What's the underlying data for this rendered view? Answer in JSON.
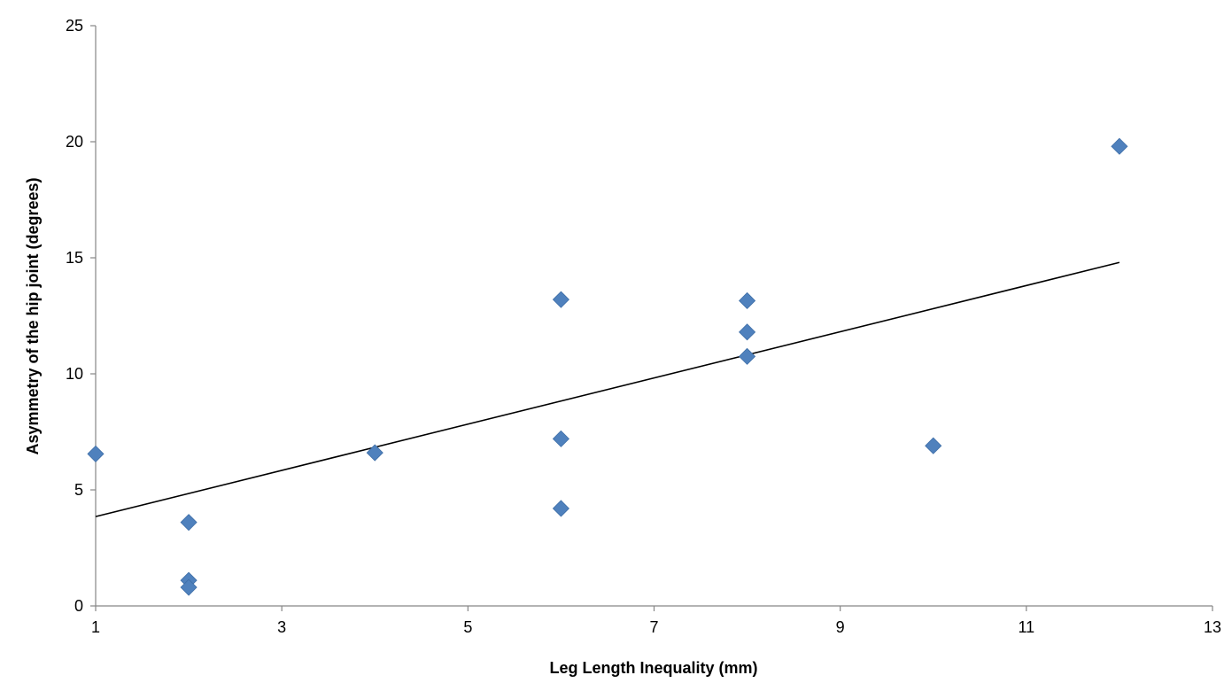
{
  "chart_data": {
    "type": "scatter",
    "title": "",
    "xlabel": "Leg Length Inequality (mm)",
    "ylabel": "Asymmetry of the hip joint (degrees)",
    "xlim": [
      1,
      13
    ],
    "ylim": [
      0,
      25
    ],
    "x_ticks": [
      1,
      3,
      5,
      7,
      9,
      11,
      13
    ],
    "y_ticks": [
      0,
      5,
      10,
      15,
      20,
      25
    ],
    "x_tick_labels": [
      "1",
      "3",
      "5",
      "7",
      "9",
      "11",
      "13"
    ],
    "y_tick_labels": [
      "0",
      "5",
      "10",
      "15",
      "20",
      "25"
    ],
    "grid": false,
    "legend": "none",
    "marker_color": "#4F81BD",
    "trendline_color": "#000000",
    "series": [
      {
        "marker": "diamond",
        "points": [
          {
            "x": 1,
            "y": 6.55
          },
          {
            "x": 2,
            "y": 3.6
          },
          {
            "x": 2,
            "y": 1.1
          },
          {
            "x": 2,
            "y": 0.8
          },
          {
            "x": 4,
            "y": 6.6
          },
          {
            "x": 6,
            "y": 13.2
          },
          {
            "x": 6,
            "y": 7.2
          },
          {
            "x": 6,
            "y": 4.2
          },
          {
            "x": 8,
            "y": 13.15
          },
          {
            "x": 8,
            "y": 11.8
          },
          {
            "x": 8,
            "y": 10.75
          },
          {
            "x": 10,
            "y": 6.9
          },
          {
            "x": 12,
            "y": 19.8
          }
        ]
      }
    ],
    "trendline": {
      "type": "linear",
      "x": [
        1,
        12
      ],
      "y": [
        3.85,
        14.8
      ]
    }
  }
}
